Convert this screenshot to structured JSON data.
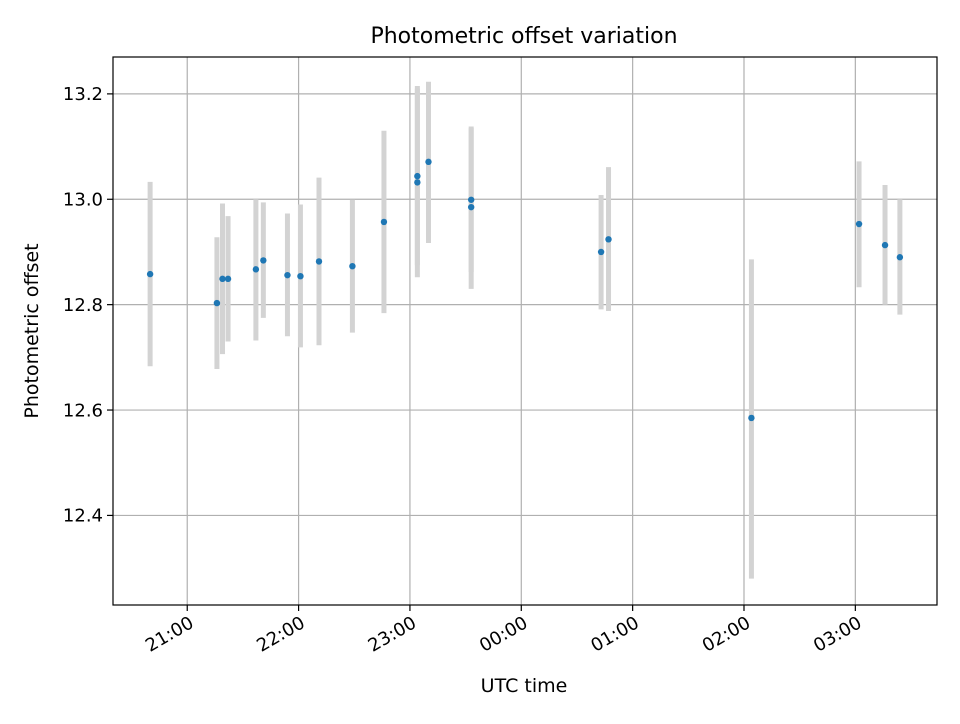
{
  "chart_data": {
    "type": "scatter",
    "title": "Photometric offset variation",
    "xlabel": "UTC time",
    "ylabel": "Photometric offset",
    "x_ticks": [
      "21:00",
      "22:00",
      "23:00",
      "00:00",
      "01:00",
      "02:00",
      "03:00"
    ],
    "y_ticks": [
      "12.4",
      "12.6",
      "12.8",
      "13.0",
      "13.2"
    ],
    "x_tick_values": [
      21,
      22,
      23,
      24,
      25,
      26,
      27
    ],
    "y_tick_values": [
      12.4,
      12.6,
      12.8,
      13.0,
      13.2
    ],
    "xlim": [
      "20:20",
      "03:44"
    ],
    "ylim": [
      12.23,
      13.27
    ],
    "grid": true,
    "colors": {
      "point": "#1f77b4",
      "errorbar": "#d3d3d3",
      "grid": "#b0b0b0"
    },
    "points": [
      {
        "x": "20:40",
        "y": 12.858,
        "yerr_low": 12.683,
        "yerr_high": 13.033
      },
      {
        "x": "21:16",
        "y": 12.803,
        "yerr_low": 12.678,
        "yerr_high": 12.928
      },
      {
        "x": "21:19",
        "y": 12.849,
        "yerr_low": 12.706,
        "yerr_high": 12.992
      },
      {
        "x": "21:22",
        "y": 12.849,
        "yerr_low": 12.73,
        "yerr_high": 12.968
      },
      {
        "x": "21:37",
        "y": 12.867,
        "yerr_low": 12.732,
        "yerr_high": 13.0
      },
      {
        "x": "21:41",
        "y": 12.884,
        "yerr_low": 12.775,
        "yerr_high": 12.994
      },
      {
        "x": "21:54",
        "y": 12.856,
        "yerr_low": 12.74,
        "yerr_high": 12.973
      },
      {
        "x": "22:01",
        "y": 12.854,
        "yerr_low": 12.719,
        "yerr_high": 12.99
      },
      {
        "x": "22:11",
        "y": 12.882,
        "yerr_low": 12.723,
        "yerr_high": 13.041
      },
      {
        "x": "22:29",
        "y": 12.873,
        "yerr_low": 12.747,
        "yerr_high": 12.999
      },
      {
        "x": "22:46",
        "y": 12.957,
        "yerr_low": 12.784,
        "yerr_high": 13.13
      },
      {
        "x": "23:04",
        "y": 13.044,
        "yerr_low": 12.875,
        "yerr_high": 13.215
      },
      {
        "x": "23:04",
        "y": 13.032,
        "yerr_low": 12.852,
        "yerr_high": 13.21
      },
      {
        "x": "23:10",
        "y": 13.071,
        "yerr_low": 12.917,
        "yerr_high": 13.223
      },
      {
        "x": "23:33",
        "y": 12.999,
        "yerr_low": 12.862,
        "yerr_high": 13.135
      },
      {
        "x": "23:33",
        "y": 12.985,
        "yerr_low": 12.83,
        "yerr_high": 13.138
      },
      {
        "x": "00:43",
        "y": 12.9,
        "yerr_low": 12.791,
        "yerr_high": 13.008
      },
      {
        "x": "00:47",
        "y": 12.924,
        "yerr_low": 12.788,
        "yerr_high": 13.061
      },
      {
        "x": "02:04",
        "y": 12.585,
        "yerr_low": 12.28,
        "yerr_high": 12.886
      },
      {
        "x": "03:02",
        "y": 12.953,
        "yerr_low": 12.833,
        "yerr_high": 13.072
      },
      {
        "x": "03:16",
        "y": 12.913,
        "yerr_low": 12.8,
        "yerr_high": 13.027
      },
      {
        "x": "03:24",
        "y": 12.89,
        "yerr_low": 12.781,
        "yerr_high": 13.0
      }
    ]
  }
}
